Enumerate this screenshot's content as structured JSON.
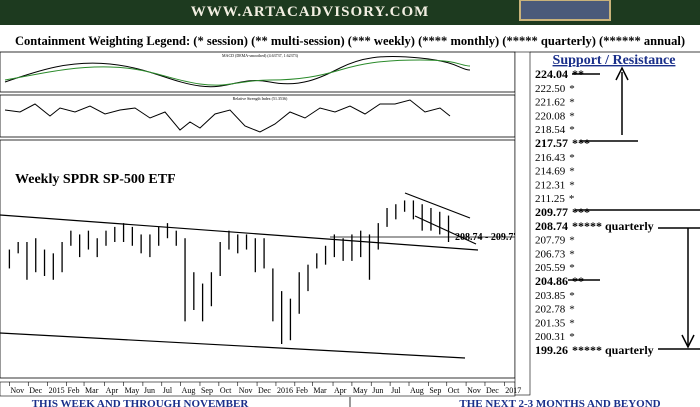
{
  "header": {
    "site": "WWW.ARTACADVISORY.COM"
  },
  "legend": {
    "text": "Containment Weighting Legend: (* session) (** multi-session) (*** weekly) (**** monthly) (***** quarterly) (****** annual)"
  },
  "indicators": {
    "macd_title": "MACD (DEMA-smoothed) (4.63737, 1.62373)",
    "rsi_title": "Relative Strength Index (51.3536)"
  },
  "chart_data": {
    "type": "range-bar",
    "title": "Weekly SPDR SP-500 ETF",
    "annotation": "208.74 - 209.77",
    "color": "#000000",
    "x": [
      0,
      2,
      4,
      6,
      8,
      10,
      12,
      14,
      16,
      18,
      20,
      22,
      24,
      26,
      28,
      30,
      32,
      34,
      36,
      38,
      40,
      42,
      44,
      46,
      48,
      50,
      52,
      54,
      56,
      58,
      60,
      62,
      64,
      66,
      68,
      70,
      72,
      74,
      76,
      78,
      80,
      82,
      84,
      86,
      88,
      90,
      92,
      94,
      96,
      98,
      100
    ],
    "lows": [
      201,
      205,
      198,
      200,
      199,
      198,
      200,
      207,
      204,
      206,
      204,
      207,
      208,
      208,
      207,
      205,
      204,
      207,
      209,
      207,
      187,
      190,
      187,
      191,
      199,
      206,
      205,
      206,
      200,
      201,
      187,
      181,
      182,
      189,
      195,
      201,
      202,
      204,
      203,
      203,
      204,
      198,
      206,
      212,
      214,
      216,
      214,
      211,
      211,
      210,
      208
    ],
    "highs": [
      206,
      208,
      208,
      209,
      206,
      205,
      208,
      211,
      210,
      211,
      209,
      211,
      212,
      213,
      212,
      210,
      210,
      212,
      213,
      211,
      209,
      200,
      197,
      200,
      208,
      211,
      210,
      210,
      209,
      209,
      201,
      195,
      193,
      200,
      202,
      205,
      207,
      210,
      209,
      210,
      211,
      210,
      213,
      217,
      218,
      219,
      219,
      218,
      217,
      216,
      215
    ],
    "xlim": [
      -1,
      114
    ],
    "ylim": [
      172,
      235
    ],
    "xticks": [
      {
        "value": 0,
        "label": "Nov"
      },
      {
        "value": 4.3,
        "label": "Dec"
      },
      {
        "value": 8.7,
        "label": "2015"
      },
      {
        "value": 13,
        "label": "Feb"
      },
      {
        "value": 17,
        "label": "Mar"
      },
      {
        "value": 21.7,
        "label": "Apr"
      },
      {
        "value": 26,
        "label": "May"
      },
      {
        "value": 30.4,
        "label": "Jun"
      },
      {
        "value": 34.7,
        "label": "Jul"
      },
      {
        "value": 39,
        "label": "Aug"
      },
      {
        "value": 43.4,
        "label": "Sep"
      },
      {
        "value": 47.7,
        "label": "Oct"
      },
      {
        "value": 52,
        "label": "Nov"
      },
      {
        "value": 56.4,
        "label": "Dec"
      },
      {
        "value": 60.7,
        "label": "2016"
      },
      {
        "value": 65,
        "label": "Feb"
      },
      {
        "value": 69,
        "label": "Mar"
      },
      {
        "value": 73.7,
        "label": "Apr"
      },
      {
        "value": 78,
        "label": "May"
      },
      {
        "value": 82.4,
        "label": "Jun"
      },
      {
        "value": 86.7,
        "label": "Jul"
      },
      {
        "value": 91,
        "label": "Aug"
      },
      {
        "value": 95.4,
        "label": "Sep"
      },
      {
        "value": 99.6,
        "label": "Oct"
      },
      {
        "value": 104,
        "label": "Nov"
      },
      {
        "value": 108.3,
        "label": "Dec"
      },
      {
        "value": 112.7,
        "label": "2017"
      }
    ]
  },
  "levels": {
    "title": "Support / Resistance",
    "items": [
      {
        "price": "224.04",
        "weight": "**",
        "bold": true
      },
      {
        "price": "222.50",
        "weight": "*"
      },
      {
        "price": "221.62",
        "weight": "*"
      },
      {
        "price": "220.08",
        "weight": "*"
      },
      {
        "price": "218.54",
        "weight": "*"
      },
      {
        "price": "217.57",
        "weight": "***",
        "bold": true
      },
      {
        "price": "216.43",
        "weight": "*"
      },
      {
        "price": "214.69",
        "weight": "*"
      },
      {
        "price": "212.31",
        "weight": "*"
      },
      {
        "price": "211.25",
        "weight": "*"
      },
      {
        "price": "209.77",
        "weight": "***",
        "bold": true
      },
      {
        "price": "208.74",
        "weight": "***** quarterly",
        "bold": true
      },
      {
        "price": "207.79",
        "weight": "*"
      },
      {
        "price": "206.73",
        "weight": "*"
      },
      {
        "price": "205.59",
        "weight": "*"
      },
      {
        "price": "204.86",
        "weight": "**",
        "bold": true
      },
      {
        "price": "203.85",
        "weight": "*"
      },
      {
        "price": "202.78",
        "weight": "*"
      },
      {
        "price": "201.35",
        "weight": "*"
      },
      {
        "price": "200.31",
        "weight": "*"
      },
      {
        "price": "199.26",
        "weight": "***** quarterly",
        "bold": true
      }
    ]
  },
  "footer": {
    "left": "THIS WEEK AND THROUGH NOVEMBER",
    "right": "THE NEXT 2-3 MONTHS AND BEYOND"
  }
}
